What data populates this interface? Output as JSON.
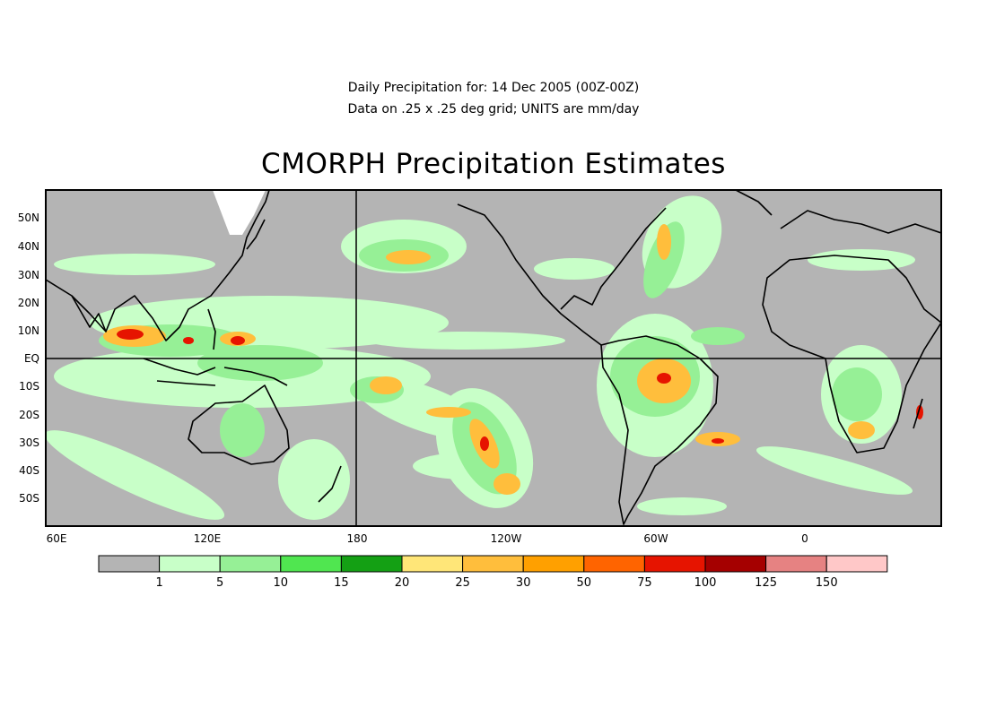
{
  "header": {
    "line1": "Daily Precipitation for: 14 Dec 2005 (00Z-00Z)",
    "line2": "Data on .25 x .25 deg grid; UNITS are mm/day",
    "title": "CMORPH Precipitation Estimates"
  },
  "map": {
    "lat_labels": [
      "50N",
      "40N",
      "30N",
      "20N",
      "10N",
      "EQ",
      "10S",
      "20S",
      "30S",
      "40S",
      "50S"
    ],
    "lon_labels": [
      "60E",
      "120E",
      "180",
      "120W",
      "60W",
      "0"
    ],
    "colors": {
      "ocean_land_dry": "#b4b4b4",
      "no_data": "#ffffff",
      "coast": "#000000"
    }
  },
  "legend": {
    "bins": [
      {
        "color": "#b4b4b4",
        "label": "1"
      },
      {
        "color": "#c8ffc8",
        "label": "5"
      },
      {
        "color": "#96f096",
        "label": "10"
      },
      {
        "color": "#50e650",
        "label": "15"
      },
      {
        "color": "#14a014",
        "label": "20"
      },
      {
        "color": "#ffe678",
        "label": "25"
      },
      {
        "color": "#ffbe3c",
        "label": "30"
      },
      {
        "color": "#ffa000",
        "label": "50"
      },
      {
        "color": "#ff6400",
        "label": "75"
      },
      {
        "color": "#e61400",
        "label": "100"
      },
      {
        "color": "#a50000",
        "label": "125"
      },
      {
        "color": "#e68282",
        "label": "150"
      },
      {
        "color": "#ffc8c8",
        "label": ""
      }
    ]
  }
}
